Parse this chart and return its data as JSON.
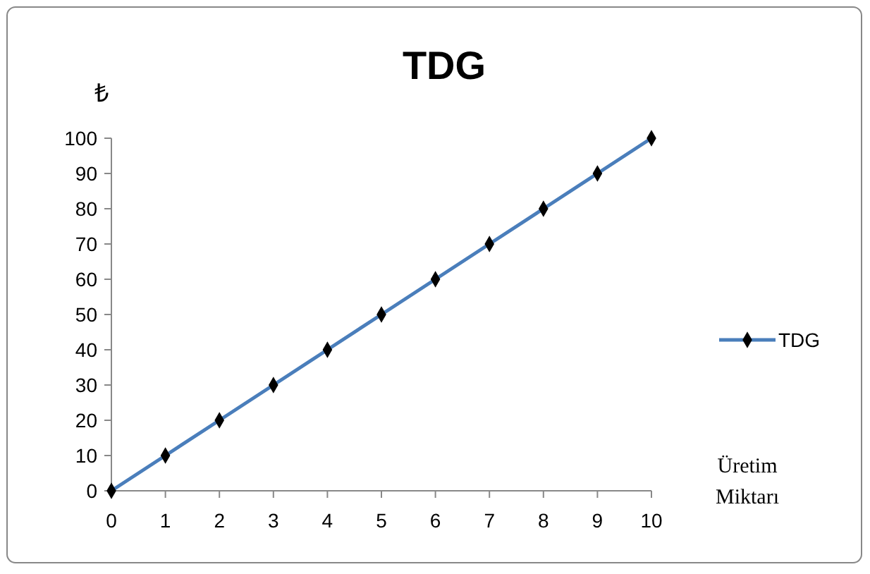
{
  "chart_data": {
    "type": "line",
    "title": "TDG",
    "ylabel": "₺",
    "xlabel": "Üretim Miktarı",
    "x": [
      0,
      1,
      2,
      3,
      4,
      5,
      6,
      7,
      8,
      9,
      10
    ],
    "series": [
      {
        "name": "TDG",
        "color": "#4a7ebb",
        "values": [
          0,
          10,
          20,
          30,
          40,
          50,
          60,
          70,
          80,
          90,
          100
        ]
      }
    ],
    "xlim": [
      0,
      10
    ],
    "xticks": [
      0,
      1,
      2,
      3,
      4,
      5,
      6,
      7,
      8,
      9,
      10
    ],
    "ylim": [
      0,
      100
    ],
    "yticks": [
      0,
      10,
      20,
      30,
      40,
      50,
      60,
      70,
      80,
      90,
      100
    ],
    "grid": false,
    "legend": "right",
    "marker": "diamond",
    "line_style": "solid"
  }
}
